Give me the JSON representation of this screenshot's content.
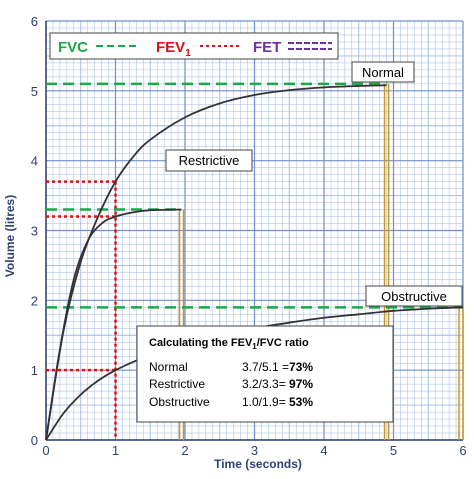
{
  "chart_data": {
    "type": "line",
    "xlabel": "Time (seconds)",
    "ylabel": "Volume (litres)",
    "xlim": [
      0,
      6
    ],
    "ylim": [
      0,
      6
    ],
    "x_ticks": [
      "0",
      "1",
      "2",
      "3",
      "4",
      "5",
      "6"
    ],
    "y_ticks": [
      "0",
      "1",
      "2",
      "3",
      "4",
      "5",
      "6"
    ],
    "grid": true,
    "legend": {
      "fvc_label": "FVC",
      "fev_label": "FEV",
      "fev_sub": "1",
      "fet_label": "FET",
      "fvc_color": "#1aa84a",
      "fev_color": "#d4141c",
      "fet_color": "#7030a0"
    },
    "series": [
      {
        "name": "Normal",
        "fvc": 5.1,
        "fev1": 3.7,
        "fet": 4.9,
        "points": [
          [
            0,
            0
          ],
          [
            0.25,
            1.55
          ],
          [
            0.5,
            2.55
          ],
          [
            0.75,
            3.2
          ],
          [
            1,
            3.7
          ],
          [
            1.25,
            4.05
          ],
          [
            1.5,
            4.3
          ],
          [
            2,
            4.62
          ],
          [
            2.5,
            4.82
          ],
          [
            3,
            4.94
          ],
          [
            3.5,
            5.01
          ],
          [
            4,
            5.05
          ],
          [
            4.5,
            5.07
          ],
          [
            4.9,
            5.08
          ]
        ]
      },
      {
        "name": "Restrictive",
        "fvc": 3.3,
        "fev1": 3.2,
        "fet": 1.95,
        "points": [
          [
            0,
            0
          ],
          [
            0.2,
            1.3
          ],
          [
            0.4,
            2.3
          ],
          [
            0.6,
            2.85
          ],
          [
            0.8,
            3.1
          ],
          [
            1,
            3.2
          ],
          [
            1.25,
            3.26
          ],
          [
            1.5,
            3.29
          ],
          [
            1.95,
            3.3
          ]
        ]
      },
      {
        "name": "Obstructive",
        "fvc": 1.9,
        "fev1": 1.0,
        "fet": 6.0,
        "points": [
          [
            0,
            0
          ],
          [
            0.25,
            0.38
          ],
          [
            0.5,
            0.65
          ],
          [
            0.75,
            0.85
          ],
          [
            1,
            1.0
          ],
          [
            1.5,
            1.22
          ],
          [
            2,
            1.38
          ],
          [
            2.5,
            1.5
          ],
          [
            3,
            1.6
          ],
          [
            3.5,
            1.68
          ],
          [
            4,
            1.75
          ],
          [
            4.5,
            1.8
          ],
          [
            5,
            1.85
          ],
          [
            5.5,
            1.88
          ],
          [
            6,
            1.9
          ]
        ]
      }
    ],
    "annotations": {
      "normal": "Normal",
      "restrictive": "Restrictive",
      "obstructive": "Obstructive"
    },
    "ratio_box": {
      "title_pre": "Calculating the FEV",
      "title_sub": "1",
      "title_post": "/FVC ratio",
      "rows": [
        {
          "name": "Normal",
          "calc": "3.7/5.1 =",
          "result": "73%"
        },
        {
          "name": "Restrictive",
          "calc": "3.2/3.3=",
          "result": "97%"
        },
        {
          "name": "Obstructive",
          "calc": "1.0/1.9=",
          "result": "53%"
        }
      ]
    }
  }
}
